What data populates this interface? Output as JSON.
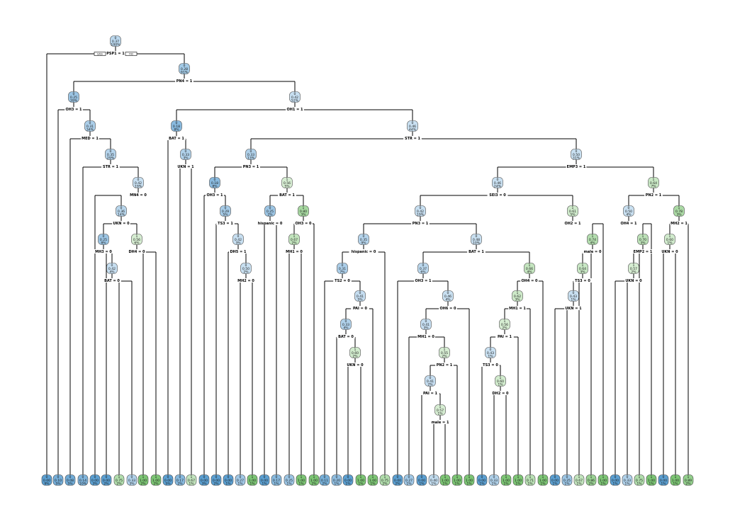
{
  "colors": {
    "class0_dark": "#5b9fd1",
    "class0_light": "#dcebf7",
    "class1_dark": "#7cc574",
    "class1_light": "#e6f4e3",
    "neutral": "#f4f7f2"
  },
  "root": {
    "class": "0",
    "prob": "0.37",
    "pct": "100%",
    "split": "PSP1 = 1",
    "yes_label": "yes",
    "no_label": "no"
  },
  "internal_nodes": [
    {
      "id": "n2",
      "class": "0",
      "prob": "0.28",
      "pct": "91%",
      "split": "PN4 = 1"
    },
    {
      "id": "n3",
      "class": "0",
      "prob": "0.25",
      "pct": "39%",
      "split": "OH3 = 1"
    },
    {
      "id": "n4",
      "class": "0",
      "prob": "0.31",
      "pct": "34%",
      "split": "MED = 1"
    },
    {
      "id": "n5",
      "class": "0",
      "prob": "0.35",
      "pct": "29%",
      "split": "STR = 1"
    },
    {
      "id": "n6",
      "class": "0",
      "prob": "0.42",
      "pct": "19%",
      "split": "MN4 = 0"
    },
    {
      "id": "n7",
      "class": "0",
      "prob": "0.36",
      "pct": "14%",
      "split": "UKN = 0"
    },
    {
      "id": "n8",
      "class": "0",
      "prob": "0.25",
      "pct": "8%",
      "split": "MH3 = 0"
    },
    {
      "id": "n9",
      "class": "0",
      "prob": "0.42",
      "pct": "4%",
      "split": "BAT = 0"
    },
    {
      "id": "n10",
      "class": "1",
      "prob": "0.56",
      "pct": "6%",
      "split": "DH4 = 0"
    },
    {
      "id": "n11",
      "class": "0",
      "prob": "0.42",
      "pct": "52%",
      "split": "OH1 = 1"
    },
    {
      "id": "n12",
      "class": "0",
      "prob": "0.18",
      "pct": "8%",
      "split": "BAT = 1"
    },
    {
      "id": "n13",
      "class": "0",
      "prob": "0.33",
      "pct": "3%",
      "split": "UKN = 1"
    },
    {
      "id": "n14",
      "class": "0",
      "prob": "0.46",
      "pct": "44%",
      "split": "STR = 1"
    },
    {
      "id": "n15",
      "class": "0",
      "prob": "0.33",
      "pct": "13%",
      "split": "PN3 = 1"
    },
    {
      "id": "n16",
      "class": "0",
      "prob": "0.18",
      "pct": "8%",
      "split": "OH3 = 1"
    },
    {
      "id": "n17",
      "class": "0",
      "prob": "0.29",
      "pct": "5%",
      "split": "TS3 = 1"
    },
    {
      "id": "n18",
      "class": "0",
      "prob": "0.42",
      "pct": "3%",
      "split": "DH5 = 1"
    },
    {
      "id": "n19",
      "class": "0",
      "prob": "0.50",
      "pct": "2%",
      "split": "MH2 = 0"
    },
    {
      "id": "n20",
      "class": "1",
      "prob": "0.56",
      "pct": "5%",
      "split": "BAT = 1"
    },
    {
      "id": "n21",
      "class": "0",
      "prob": "0.25",
      "pct": "2%",
      "split": "hispanic = 0"
    },
    {
      "id": "n22",
      "class": "1",
      "prob": "0.80",
      "pct": "3%",
      "split": "OH3 = 0"
    },
    {
      "id": "n23",
      "class": "1",
      "prob": "0.67",
      "pct": "2%",
      "split": "MH1 = 0"
    },
    {
      "id": "n24",
      "class": "0",
      "prob": "0.50",
      "pct": "31%",
      "split": "EMP3 = 1"
    },
    {
      "id": "n25",
      "class": "0",
      "prob": "0.46",
      "pct": "24%",
      "split": "SEI3 = 0"
    },
    {
      "id": "n26",
      "class": "0",
      "prob": "0.42",
      "pct": "19%",
      "split": "PN3 = 1"
    },
    {
      "id": "n27",
      "class": "0",
      "prob": "0.35",
      "pct": "9%",
      "split": "hispanic = 0"
    },
    {
      "id": "n28",
      "class": "0",
      "prob": "0.31",
      "pct": "7%",
      "split": "TS2 = 0"
    },
    {
      "id": "n29",
      "class": "0",
      "prob": "0.41",
      "pct": "5%",
      "split": "PAI = 0"
    },
    {
      "id": "n30",
      "class": "0",
      "prob": "0.33",
      "pct": "4%",
      "split": "BAT = 0"
    },
    {
      "id": "n31",
      "class": "1",
      "prob": "0.60",
      "pct": "2%",
      "split": "UKN = 0"
    },
    {
      "id": "n32",
      "class": "0",
      "prob": "0.48",
      "pct": "10%",
      "split": "BAT = 1"
    },
    {
      "id": "n33",
      "class": "0",
      "prob": "0.37",
      "pct": "6%",
      "split": "OH3 = 1"
    },
    {
      "id": "n34",
      "class": "0",
      "prob": "0.46",
      "pct": "4%",
      "split": "OH6 = 0"
    },
    {
      "id": "n35",
      "class": "0",
      "prob": "0.41",
      "pct": "3%",
      "split": "MH1 = 0"
    },
    {
      "id": "n36",
      "class": "1",
      "prob": "0.55",
      "pct": "2%",
      "split": "PN2 = 1"
    },
    {
      "id": "n37",
      "class": "0",
      "prob": "0.41",
      "pct": "2%",
      "split": "PAI = 1"
    },
    {
      "id": "n38",
      "class": "1",
      "prob": "0.57",
      "pct": "1%",
      "split": "male = 1"
    },
    {
      "id": "n39",
      "class": "1",
      "prob": "0.66",
      "pct": "4%",
      "split": "OH4 = 0"
    },
    {
      "id": "n40",
      "class": "1",
      "prob": "0.62",
      "pct": "3%",
      "split": "MH1 = 1"
    },
    {
      "id": "n41",
      "class": "1",
      "prob": "0.56",
      "pct": "2%",
      "split": "PAI = 1"
    },
    {
      "id": "n42",
      "class": "0",
      "prob": "0.43",
      "pct": "1%",
      "split": "TS3 = 0"
    },
    {
      "id": "n43",
      "class": "1",
      "prob": "0.60",
      "pct": "1%",
      "split": "DH2 = 0"
    },
    {
      "id": "n44",
      "class": "1",
      "prob": "0.61",
      "pct": "5%",
      "split": "OH2 = 1"
    },
    {
      "id": "n45",
      "class": "1",
      "prob": "0.74",
      "pct": "4%",
      "split": "male = 0"
    },
    {
      "id": "n46",
      "class": "1",
      "prob": "0.64",
      "pct": "3%",
      "split": "TS3 = 0"
    },
    {
      "id": "n47",
      "class": "0",
      "prob": "0.43",
      "pct": "1%",
      "split": "UKN = 1"
    },
    {
      "id": "n48",
      "class": "1",
      "prob": "0.64",
      "pct": "7%",
      "split": "PN2 = 1"
    },
    {
      "id": "n49",
      "class": "0",
      "prob": "0.50",
      "pct": "4%",
      "split": "OH4 = 1"
    },
    {
      "id": "n50",
      "class": "1",
      "prob": "0.70",
      "pct": "3%",
      "split": "EMP2 = 1"
    },
    {
      "id": "n51",
      "class": "1",
      "prob": "0.57",
      "pct": "2%",
      "split": "UKN = 0"
    },
    {
      "id": "n52",
      "class": "1",
      "prob": "0.78",
      "pct": "3%",
      "split": "MH2 = 1"
    },
    {
      "id": "n53",
      "class": "1",
      "prob": "0.60",
      "pct": "1%",
      "split": "UKN = 0"
    }
  ],
  "leaves": [
    {
      "class": "0",
      "prob": "0.00",
      "pct": "9%"
    },
    {
      "class": "0",
      "prob": "0.10",
      "pct": "5%"
    },
    {
      "class": "0",
      "prob": "0.08",
      "pct": "5%"
    },
    {
      "class": "0",
      "prob": "0.14",
      "pct": "10%"
    },
    {
      "class": "0",
      "prob": "0.00",
      "pct": "3%"
    },
    {
      "class": "0",
      "prob": "0.00",
      "pct": "2%"
    },
    {
      "class": "1",
      "prob": "0.75",
      "pct": "2%"
    },
    {
      "class": "0",
      "prob": "0.33",
      "pct": "3%"
    },
    {
      "class": "1",
      "prob": "1.00",
      "pct": "2%"
    },
    {
      "class": "1",
      "prob": "1.00",
      "pct": "2%"
    },
    {
      "class": "0",
      "prob": "0.00",
      "pct": "5%"
    },
    {
      "class": "0",
      "prob": "0.17",
      "pct": "2%"
    },
    {
      "class": "1",
      "prob": "0.67",
      "pct": "1%"
    },
    {
      "class": "0",
      "prob": "0.00",
      "pct": "3%"
    },
    {
      "class": "0",
      "prob": "0.00",
      "pct": "2%"
    },
    {
      "class": "0",
      "prob": "0.00",
      "pct": "1%"
    },
    {
      "class": "0",
      "prob": "0.27",
      "pct": "1%"
    },
    {
      "class": "1",
      "prob": "1.00",
      "pct": "1%"
    },
    {
      "class": "0",
      "prob": "0.00",
      "pct": "1%"
    },
    {
      "class": "0",
      "prob": "0.17",
      "pct": "1%"
    },
    {
      "class": "0",
      "prob": "0.25",
      "pct": "1%"
    },
    {
      "class": "1",
      "prob": "1.00",
      "pct": "1%"
    },
    {
      "class": "1",
      "prob": "1.00",
      "pct": "2%"
    },
    {
      "class": "0",
      "prob": "0.11",
      "pct": "2%"
    },
    {
      "class": "0",
      "prob": "0.20",
      "pct": "1%"
    },
    {
      "class": "0",
      "prob": "0.00",
      "pct": "1%"
    },
    {
      "class": "1",
      "prob": "1.00",
      "pct": "1%"
    },
    {
      "class": "1",
      "prob": "1.00",
      "pct": "1%"
    },
    {
      "class": "1",
      "prob": "0.75",
      "pct": "2%"
    },
    {
      "class": "0",
      "prob": "0.00",
      "pct": "2%"
    },
    {
      "class": "0",
      "prob": "0.27",
      "pct": "1%"
    },
    {
      "class": "0",
      "prob": "0.00",
      "pct": "1%"
    },
    {
      "class": "0",
      "prob": "0.40",
      "pct": "1%"
    },
    {
      "class": "1",
      "prob": "1.00",
      "pct": "1%"
    },
    {
      "class": "1",
      "prob": "1.00",
      "pct": "1%"
    },
    {
      "class": "1",
      "prob": "1.00",
      "pct": "1%"
    },
    {
      "class": "0",
      "prob": "0.00",
      "pct": "1%"
    },
    {
      "class": "0",
      "prob": "0.33",
      "pct": "1%"
    },
    {
      "class": "1",
      "prob": "1.00",
      "pct": "1%"
    },
    {
      "class": "1",
      "prob": "1.00",
      "pct": "1%"
    },
    {
      "class": "1",
      "prob": "0.71",
      "pct": "1%"
    },
    {
      "class": "1",
      "prob": "1.00",
      "pct": "1%"
    },
    {
      "class": "0",
      "prob": "0.00",
      "pct": "1%"
    },
    {
      "class": "0",
      "prob": "0.25",
      "pct": "1%"
    },
    {
      "class": "1",
      "prob": "0.67",
      "pct": "1%"
    },
    {
      "class": "1",
      "prob": "0.86",
      "pct": "2%"
    },
    {
      "class": "1",
      "prob": "1.00",
      "pct": "1%"
    },
    {
      "class": "0",
      "prob": "0.00",
      "pct": "1%"
    },
    {
      "class": "0",
      "prob": "0.33",
      "pct": "1%"
    },
    {
      "class": "1",
      "prob": "0.75",
      "pct": "1%"
    },
    {
      "class": "1",
      "prob": "1.00",
      "pct": "1%"
    },
    {
      "class": "0",
      "prob": "0.00",
      "pct": "1%"
    },
    {
      "class": "1",
      "prob": "1.00",
      "pct": "1%"
    },
    {
      "class": "1",
      "prob": "0.89",
      "pct": "2%"
    }
  ]
}
